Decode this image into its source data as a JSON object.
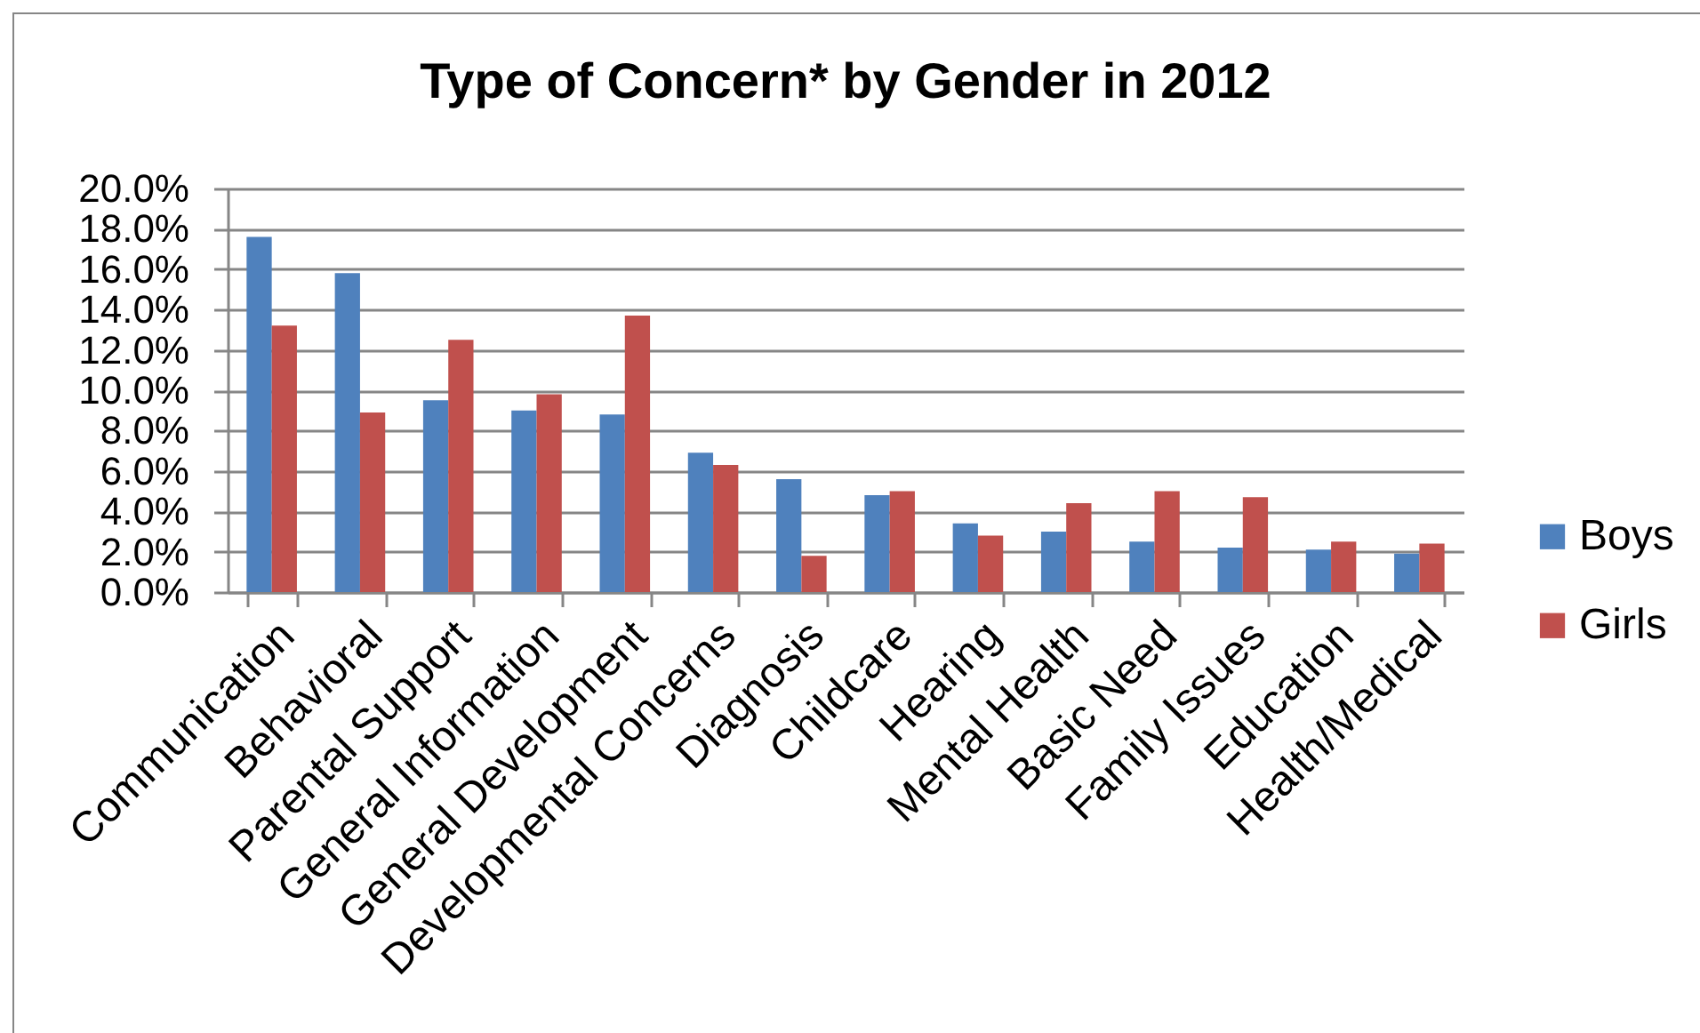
{
  "chart_data": {
    "type": "bar",
    "title": "Type of Concern* by Gender in 2012",
    "categories": [
      "Communication",
      "Behavioral",
      "Parental Support",
      "General Information",
      "General Development",
      "Developmental Concerns",
      "Diagnosis",
      "Childcare",
      "Hearing",
      "Mental Health",
      "Basic Need",
      "Family Issues",
      "Education",
      "Health/Medical"
    ],
    "series": [
      {
        "name": "Boys",
        "color": "#4f81bd",
        "values": [
          17.6,
          15.8,
          9.5,
          9.0,
          8.8,
          6.9,
          5.6,
          4.8,
          3.4,
          3.0,
          2.5,
          2.2,
          2.1,
          1.9
        ]
      },
      {
        "name": "Girls",
        "color": "#c0504d",
        "values": [
          13.2,
          8.9,
          12.5,
          9.8,
          13.7,
          6.3,
          1.8,
          5.0,
          2.8,
          4.4,
          5.0,
          4.7,
          2.5,
          2.4
        ]
      }
    ],
    "ylim": [
      0,
      20
    ],
    "yticks": [
      {
        "value": 0,
        "label": "0.0%"
      },
      {
        "value": 2,
        "label": "2.0%"
      },
      {
        "value": 4,
        "label": "4.0%"
      },
      {
        "value": 6,
        "label": "6.0%"
      },
      {
        "value": 8,
        "label": "8.0%"
      },
      {
        "value": 10,
        "label": "10.0%"
      },
      {
        "value": 12,
        "label": "12.0%"
      },
      {
        "value": 14,
        "label": "14.0%"
      },
      {
        "value": 16,
        "label": "16.0%"
      },
      {
        "value": 18,
        "label": "18.0%"
      },
      {
        "value": 20,
        "label": "20.0%"
      }
    ],
    "grid": "y",
    "legend": "right"
  }
}
